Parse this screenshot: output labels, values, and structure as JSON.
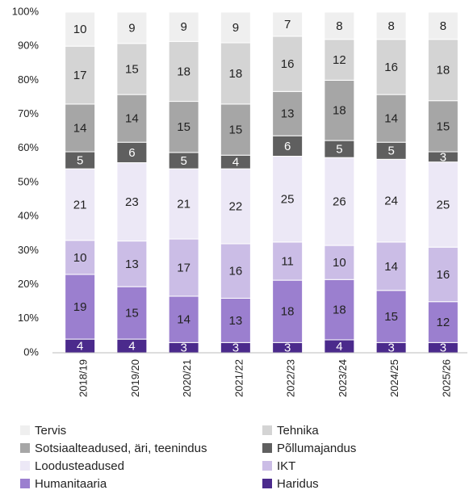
{
  "chart_data": {
    "type": "stacked_bar",
    "categories": [
      "2018/19",
      "2019/20",
      "2020/21",
      "2021/22",
      "2022/23",
      "2023/24",
      "2024/25",
      "2025/26"
    ],
    "series": [
      {
        "name": "Haridus",
        "color": "#4b2a8c",
        "values": [
          4,
          4,
          3,
          3,
          3,
          3.8,
          3,
          3
        ],
        "value_labels": [
          "4",
          "4",
          "3",
          "3",
          "3",
          "4",
          "3",
          "3"
        ]
      },
      {
        "name": "Humanitaaria",
        "color": "#9b7fcf",
        "values": [
          19,
          15.4,
          13.6,
          13,
          18.3,
          17.7,
          15.3,
          12
        ],
        "value_labels": [
          "19",
          "15",
          "14",
          "13",
          "18",
          "18",
          "15",
          "12"
        ]
      },
      {
        "name": "IKT",
        "color": "#cbbde6",
        "values": [
          10,
          13.4,
          16.8,
          16,
          11.2,
          10,
          14.2,
          16
        ],
        "value_labels": [
          "10",
          "13",
          "17",
          "16",
          "11",
          "10",
          "14",
          "16"
        ]
      },
      {
        "name": "Loodusteadused",
        "color": "#ece8f6",
        "values": [
          21,
          23,
          20.6,
          22,
          25.2,
          25.8,
          24.3,
          25
        ],
        "value_labels": [
          "21",
          "23",
          "21",
          "22",
          "25",
          "26",
          "24",
          "25"
        ]
      },
      {
        "name": "Põllumajandus",
        "color": "#5f5f5f",
        "values": [
          5,
          6,
          4.8,
          4,
          6,
          5,
          5,
          3
        ],
        "value_labels": [
          "5",
          "6",
          "5",
          "4",
          "6",
          "5",
          "5",
          "3"
        ]
      },
      {
        "name": "Sotsiaalteadused, äri, teenindus",
        "color": "#a6a6a6",
        "values": [
          14,
          14,
          15,
          15,
          13,
          17.7,
          14,
          15
        ],
        "value_labels": [
          "14",
          "14",
          "15",
          "15",
          "13",
          "18",
          "14",
          "15"
        ]
      },
      {
        "name": "Tehnika",
        "color": "#d4d4d4",
        "values": [
          17,
          15,
          17.6,
          18,
          16.2,
          12,
          16.2,
          18
        ],
        "value_labels": [
          "17",
          "15",
          "18",
          "18",
          "16",
          "12",
          "16",
          "18"
        ]
      },
      {
        "name": "Tervis",
        "color": "#efefef",
        "values": [
          10,
          9.2,
          8.6,
          9,
          7.1,
          8,
          8,
          8
        ],
        "value_labels": [
          "10",
          "9",
          "9",
          "9",
          "7",
          "8",
          "8",
          "8"
        ]
      }
    ],
    "ylim": [
      0,
      100
    ],
    "yticks": [
      {
        "value": 0,
        "label": "0%"
      },
      {
        "value": 10,
        "label": "10%"
      },
      {
        "value": 20,
        "label": "20%"
      },
      {
        "value": 30,
        "label": "30%"
      },
      {
        "value": 40,
        "label": "40%"
      },
      {
        "value": 50,
        "label": "50%"
      },
      {
        "value": 60,
        "label": "60%"
      },
      {
        "value": 70,
        "label": "70%"
      },
      {
        "value": 80,
        "label": "80%"
      },
      {
        "value": 90,
        "label": "90%"
      },
      {
        "value": {
          "value": 100,
          "label": "100%"
        }
      }
    ],
    "legend": "bottom"
  }
}
